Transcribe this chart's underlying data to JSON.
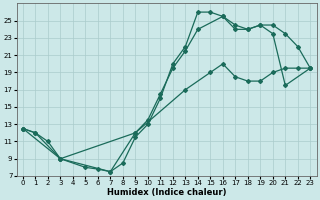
{
  "xlabel": "Humidex (Indice chaleur)",
  "xlim": [
    -0.5,
    23.5
  ],
  "ylim": [
    7,
    27
  ],
  "yticks": [
    7,
    9,
    11,
    13,
    15,
    17,
    19,
    21,
    23,
    25
  ],
  "xticks": [
    0,
    1,
    2,
    3,
    4,
    5,
    6,
    7,
    8,
    9,
    10,
    11,
    12,
    13,
    14,
    15,
    16,
    17,
    18,
    19,
    20,
    21,
    22,
    23
  ],
  "bg_color": "#cce8e8",
  "grid_color": "#aacccc",
  "line_color": "#1a6b5a",
  "line1_x": [
    0,
    1,
    3,
    7,
    9,
    10,
    11,
    12,
    13,
    14,
    16,
    17,
    18,
    19,
    20,
    21,
    23
  ],
  "line1_y": [
    12.5,
    12.0,
    9.0,
    7.5,
    12.0,
    13.5,
    16.5,
    19.5,
    21.5,
    24.0,
    25.5,
    24.0,
    24.0,
    24.5,
    23.5,
    17.5,
    19.5
  ],
  "line2_x": [
    0,
    1,
    2,
    3,
    5,
    6,
    7,
    8,
    9,
    10,
    11,
    12,
    13,
    14,
    15,
    16,
    17,
    18,
    19,
    20,
    21,
    22,
    23
  ],
  "line2_y": [
    12.5,
    12.0,
    11.0,
    9.0,
    8.0,
    7.8,
    7.5,
    8.5,
    11.5,
    13.0,
    16.0,
    20.0,
    22.0,
    26.0,
    26.0,
    25.5,
    24.5,
    24.0,
    24.5,
    24.5,
    23.5,
    22.0,
    19.5
  ],
  "line3_x": [
    0,
    3,
    9,
    13,
    15,
    16,
    17,
    18,
    19,
    20,
    21,
    22,
    23
  ],
  "line3_y": [
    12.5,
    9.0,
    12.0,
    17.0,
    19.0,
    20.0,
    18.5,
    18.0,
    18.0,
    19.0,
    19.5,
    19.5,
    19.5
  ]
}
